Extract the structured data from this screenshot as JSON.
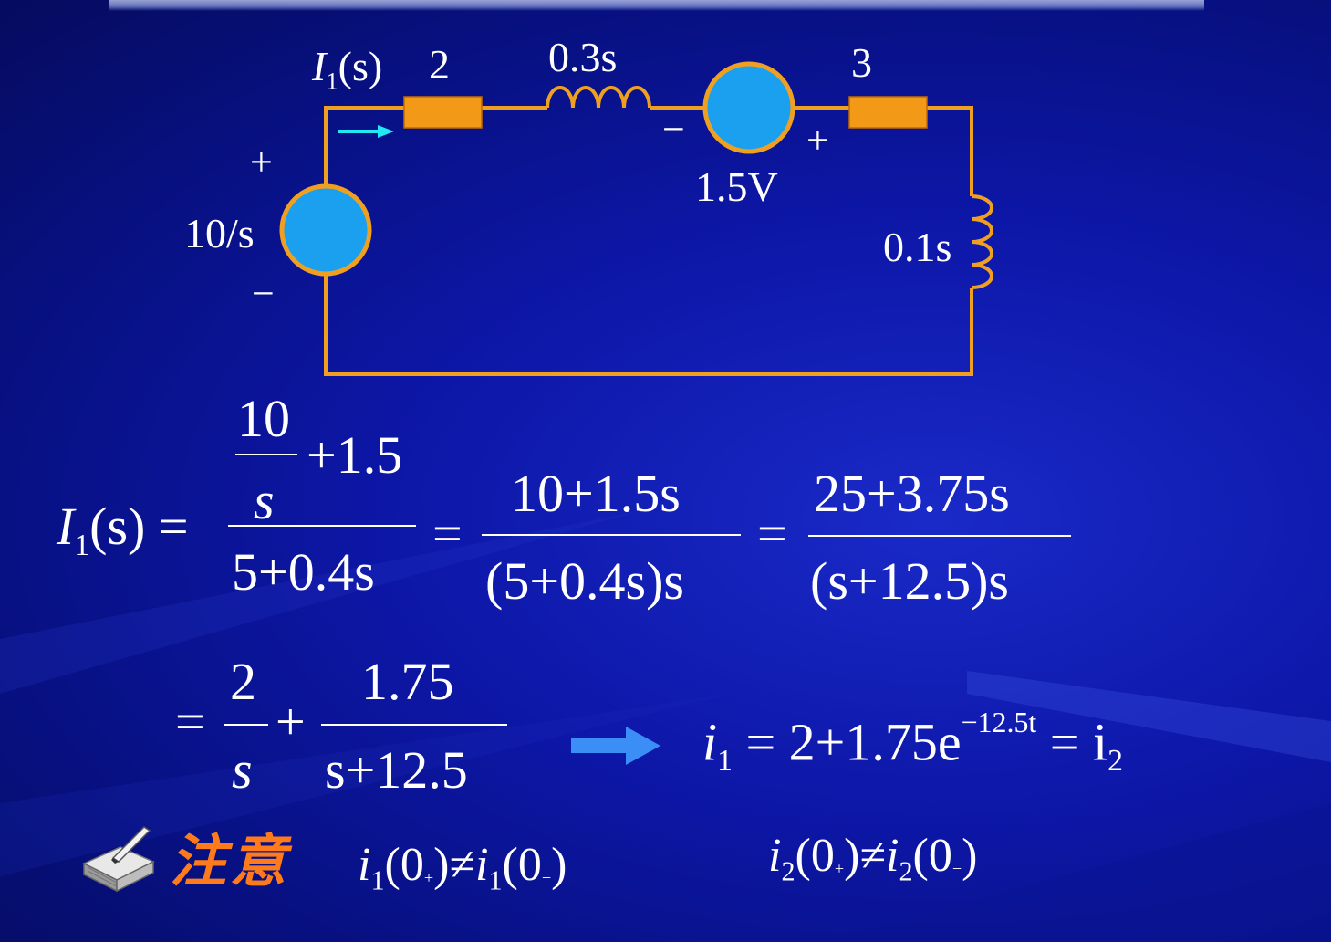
{
  "circuit": {
    "current_label": {
      "main": "I",
      "sub": "1",
      "tail": "(s)"
    },
    "resistor_left": "2",
    "inductor_top": "0.3s",
    "resistor_right": "3",
    "source_left": {
      "value": "10/s",
      "plus": "+",
      "minus": "−"
    },
    "source_mid": {
      "value": "1.5V",
      "plus": "+",
      "minus": "−"
    },
    "inductor_right": "0.1s",
    "colors": {
      "wire": "#f0a020",
      "source_fill": "#1aa0ee",
      "resistor": "#f29a18",
      "arrow": "#22e8f5"
    }
  },
  "eq1": {
    "lhs_main": "I",
    "lhs_sub": "1",
    "lhs_tail": "(s)",
    "equals": "=",
    "frac1_inner_num": "10",
    "frac1_inner_den": "s",
    "frac1_plus": "+1.5",
    "frac1_den": "5+0.4s",
    "frac2_num": "10+1.5s",
    "frac2_den": "(5+0.4s)s",
    "frac3_num": "25+3.75s",
    "frac3_den": "(s+12.5)s"
  },
  "eq2": {
    "equals": "=",
    "frac_a_num": "2",
    "frac_a_den": "s",
    "plus": "+",
    "frac_b_num": "1.75",
    "frac_b_den": "s+12.5",
    "result_var": "i",
    "result_sub": "1",
    "result_body": "= 2+1.75e",
    "result_exp": "−12.5t",
    "result_tail": "= i",
    "result_tail_sub": "2"
  },
  "note": {
    "icon": "book-note-icon",
    "label": "注意",
    "expr1": {
      "var": "i",
      "sub": "1",
      "left": "(0",
      "plus_sub": "+",
      "mid": ")≠",
      "var2": "i",
      "sub2": "1",
      "left2": "(0",
      "minus_sub": "−",
      "close": ")"
    },
    "expr2": {
      "var": "i",
      "sub": "2",
      "left": "(0",
      "plus_sub": "+",
      "mid": ")≠",
      "var2": "i",
      "sub2": "2",
      "left2": "(0",
      "minus_sub": "−",
      "close": ")"
    }
  }
}
